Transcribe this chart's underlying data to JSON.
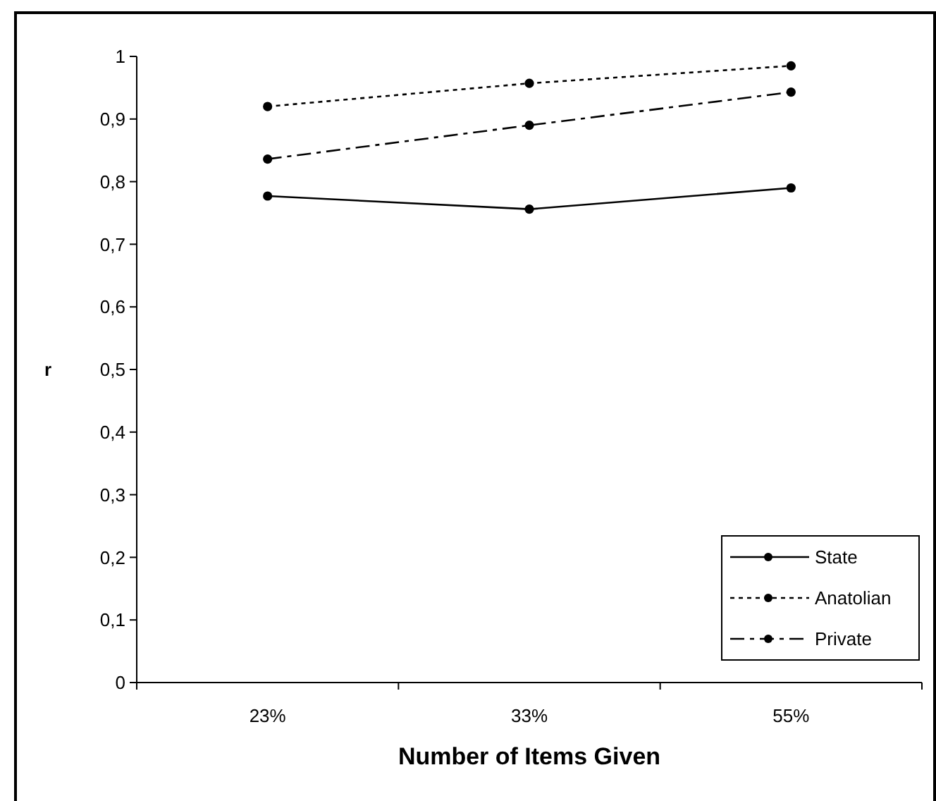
{
  "chart_data": {
    "type": "line",
    "xlabel": "Number of Items Given",
    "ylabel": "r",
    "categories": [
      "23%",
      "33%",
      "55%"
    ],
    "series": [
      {
        "name": "State",
        "color": "#000000",
        "line_style": "solid",
        "values": [
          0.777,
          0.756,
          0.79
        ]
      },
      {
        "name": "Anatolian",
        "color": "#000000",
        "line_style": "dotted",
        "values": [
          0.92,
          0.957,
          0.985
        ]
      },
      {
        "name": "Private",
        "color": "#000000",
        "line_style": "dashed",
        "values": [
          0.836,
          0.89,
          0.943
        ]
      }
    ],
    "ylim": [
      0,
      1
    ],
    "yticks": [
      0,
      {
        "value": 0.1,
        "label": "0,1"
      },
      {
        "value": 0.2,
        "label": "0,2"
      },
      {
        "value": 0.3,
        "label": "0,3"
      },
      {
        "value": 0.4,
        "label": "0,4"
      },
      {
        "value": 0.5,
        "label": "0,5"
      },
      {
        "value": 0.6,
        "label": "0,6"
      },
      {
        "value": 0.7,
        "label": "0,7"
      },
      {
        "value": 0.8,
        "label": "0,8"
      },
      {
        "value": 0.9,
        "label": "0,9"
      },
      1
    ],
    "marker": "circle",
    "legend": "bottom right",
    "grid": false
  }
}
